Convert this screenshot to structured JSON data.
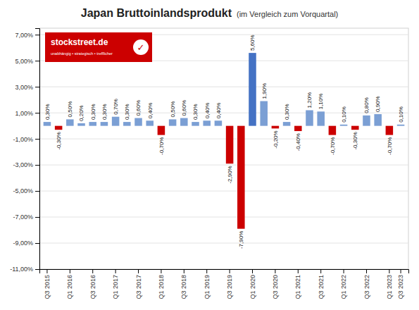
{
  "chart_data": {
    "type": "bar",
    "title": "Japan Bruttoinlandsprodukt",
    "subtitle": "(im Vergleich zum Vorquartal)",
    "annotations": [
      "stockstreet.de",
      "unabhängig • strategisch • trefflicher",
      "✓"
    ],
    "categories": [
      "Q3\n2015",
      null,
      "Q1\n2016",
      null,
      "Q3\n2016",
      null,
      "Q1\n2017",
      null,
      "Q3\n2017",
      null,
      "Q1\n2018",
      null,
      "Q3\n2018",
      null,
      "Q1\n2019",
      null,
      "Q3\n2019",
      null,
      "Q1\n2020",
      null,
      "Q3\n2020",
      null,
      "Q1\n2021",
      null,
      "Q3\n2021",
      null,
      "Q1\n2022",
      null,
      "Q3\n2022",
      null,
      "Q1\n2023",
      "Q3\n2023"
    ],
    "values": [
      0.3,
      -0.3,
      0.5,
      0.2,
      0.3,
      0.3,
      0.7,
      0.3,
      0.6,
      0.4,
      -0.7,
      0.5,
      0.6,
      0.3,
      0.4,
      0.4,
      -2.9,
      -7.9,
      5.6,
      1.9,
      -0.2,
      0.3,
      -0.4,
      1.2,
      1.1,
      -0.7,
      0.1,
      -0.3,
      0.8,
      0.9,
      -0.7,
      0.1
    ],
    "value_labels": [
      "0,30%",
      "-0,30%",
      "0,50%",
      "0,20%",
      "0,30%",
      "0,30%",
      "0,70%",
      "0,30%",
      "0,60%",
      "0,40%",
      "-0,70%",
      "0,50%",
      "0,60%",
      "0,30%",
      "0,40%",
      "0,40%",
      "-2,90%",
      "-7,90%",
      "5,60%",
      "1,90%",
      "-0,20%",
      "0,30%",
      "-0,40%",
      "1,20%",
      "1,10%",
      "-0,70%",
      "0,10%",
      "-0,30%",
      "0,80%",
      "0,90%",
      "-0,70%",
      "0,10%"
    ],
    "data_labels": true,
    "colors": [
      "#7B9FD4",
      "#CC0000",
      "#7B9FD4",
      "#7B9FD4",
      "#7B9FD4",
      "#7B9FD4",
      "#7B9FD4",
      "#7B9FD4",
      "#7B9FD4",
      "#7B9FD4",
      "#CC0000",
      "#7B9FD4",
      "#7B9FD4",
      "#7B9FD4",
      "#7B9FD4",
      "#7B9FD4",
      "#CC0000",
      "#CC0000",
      "#4472C4",
      "#7B9FD4",
      "#CC0000",
      "#7B9FD4",
      "#CC0000",
      "#7B9FD4",
      "#7B9FD4",
      "#CC0000",
      "#7B9FD4",
      "#CC0000",
      "#7B9FD4",
      "#7B9FD4",
      "#CC0000",
      "#7B9FD4"
    ],
    "ylim": [
      -11.0,
      7.5
    ],
    "yticks": [
      {
        "value": -11.0,
        "label": "-11,00%"
      },
      {
        "value": -9.0,
        "label": "-9,00%"
      },
      {
        "value": -7.0,
        "label": "-7,00%"
      },
      {
        "value": -5.0,
        "label": "-5,00%"
      },
      {
        "value": -3.0,
        "label": "-3,00%"
      },
      {
        "value": -1.0,
        "label": "-1,00%"
      },
      {
        "value": 1.0,
        "label": "1,00%"
      },
      {
        "value": 3.0,
        "label": "3,00%"
      },
      {
        "value": 5.0,
        "label": "5,00%"
      },
      {
        "value": 7.0,
        "label": "7,00%"
      }
    ],
    "grid": true
  }
}
